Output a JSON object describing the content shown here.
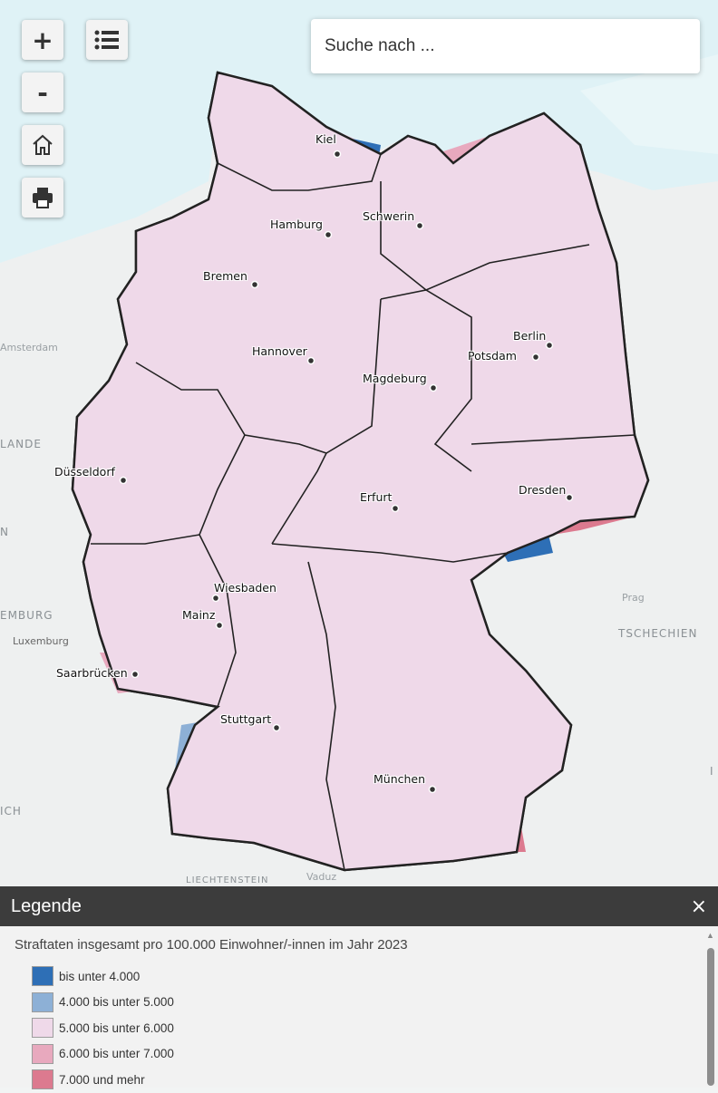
{
  "controls": {
    "zoom_in": "+",
    "zoom_out": "-",
    "layers_icon": "list-icon",
    "home_icon": "home-icon",
    "print_icon": "printer-icon"
  },
  "search": {
    "placeholder": "Suche nach ..."
  },
  "map": {
    "cities": [
      {
        "name": "Kiel"
      },
      {
        "name": "Hamburg"
      },
      {
        "name": "Schwerin"
      },
      {
        "name": "Bremen"
      },
      {
        "name": "Hannover"
      },
      {
        "name": "Berlin"
      },
      {
        "name": "Potsdam"
      },
      {
        "name": "Magdeburg"
      },
      {
        "name": "Düsseldorf"
      },
      {
        "name": "Erfurt"
      },
      {
        "name": "Dresden"
      },
      {
        "name": "Wiesbaden"
      },
      {
        "name": "Mainz"
      },
      {
        "name": "Saarbrücken"
      },
      {
        "name": "Stuttgart"
      },
      {
        "name": "München"
      }
    ],
    "basemap_labels": [
      "Amsterdam",
      "LANDE",
      "N",
      "EMBURG",
      "Luxemburg",
      "Prag",
      "TSCHECHIEN",
      "ICH",
      "LIECHTENSTEIN",
      "Vaduz",
      "I"
    ]
  },
  "legend": {
    "title": "Legende",
    "close": "×",
    "subtitle": "Straftaten insgesamt pro 100.000 Einwohner/-innen im Jahr 2023",
    "classes": [
      {
        "label": "bis unter 4.000",
        "color": "#2e6fb6"
      },
      {
        "label": "4.000 bis unter 5.000",
        "color": "#8db0d6"
      },
      {
        "label": "5.000 bis unter 6.000",
        "color": "#efd9e9"
      },
      {
        "label": "6.000 bis unter 7.000",
        "color": "#e8a9be"
      },
      {
        "label": "7.000 und mehr",
        "color": "#dc7a8f"
      }
    ]
  }
}
